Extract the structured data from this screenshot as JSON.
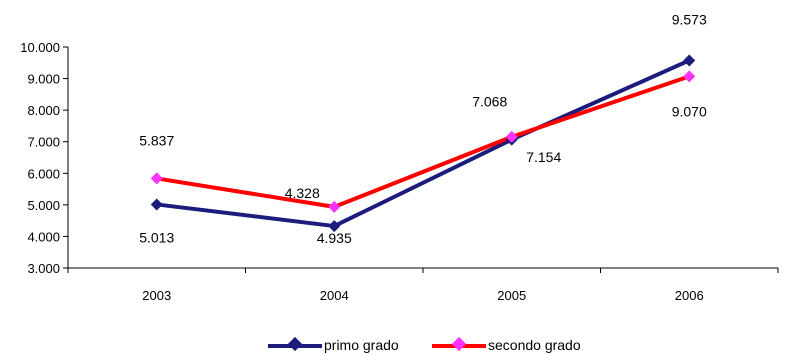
{
  "chart_data": {
    "type": "line",
    "categories": [
      "2003",
      "2004",
      "2005",
      "2006"
    ],
    "series": [
      {
        "name": "primo grado",
        "values": [
          5.013,
          4.328,
          7.068,
          9.573
        ],
        "color": "#1c1c7c",
        "marker_color": "#1c1c7c"
      },
      {
        "name": "secondo grado",
        "values": [
          5.837,
          4.935,
          7.154,
          9.07
        ],
        "color": "#ff0000",
        "marker_color": "#ff33ff"
      }
    ],
    "data_labels": {
      "primo grado": [
        "5.013",
        "4.328",
        "7.068",
        "9.573"
      ],
      "secondo grado": [
        "5.837",
        "4.935",
        "7.154",
        "9.070"
      ]
    },
    "y_ticks": [
      "3.000",
      "4.000",
      "5.000",
      "6.000",
      "7.000",
      "8.000",
      "9.000",
      "10.000"
    ],
    "ylim": [
      3,
      10
    ],
    "grid": false,
    "legend_position": "bottom"
  }
}
